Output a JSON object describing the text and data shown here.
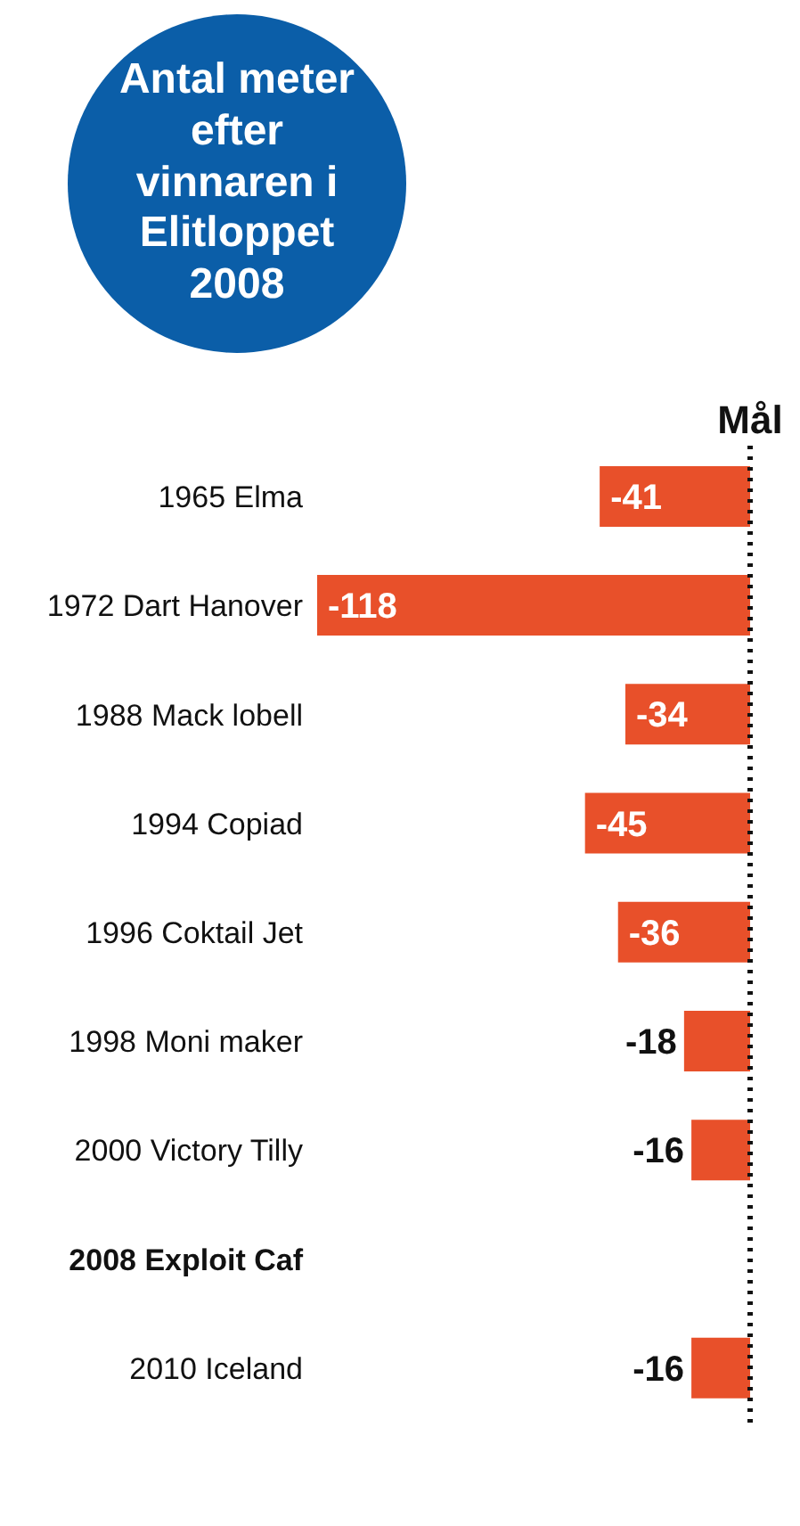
{
  "chart_data": {
    "type": "bar",
    "orientation": "horizontal",
    "title": "Antal meter efter vinnaren i Elitloppet 2008",
    "categories": [
      "1965 Elma",
      "1972 Dart Hanover",
      "1988 Mack lobell",
      "1994 Copiad",
      "1996 Coktail Jet",
      "1998 Moni maker",
      "2000 Victory Tilly",
      "2008 Exploit Caf",
      "2010 Iceland"
    ],
    "values": [
      -41,
      -118,
      -34,
      -45,
      -36,
      -18,
      -16,
      0,
      -16
    ],
    "colors": [
      "#e8502a",
      "#e8502a",
      "#e8502a",
      "#e8502a",
      "#e8502a",
      "#e8502a",
      "#e8502a",
      "#0b5ea8",
      "#e8502a"
    ],
    "value_labels": [
      "-41",
      "-118",
      "-34",
      "-45",
      "-36",
      "-18",
      "-16",
      null,
      "-16"
    ],
    "ref_lines": [
      {
        "axis": "x",
        "value": 0,
        "label": "Mål",
        "line_style": "dotted",
        "color": "#111111"
      }
    ],
    "legend": false,
    "grid": false
  }
}
